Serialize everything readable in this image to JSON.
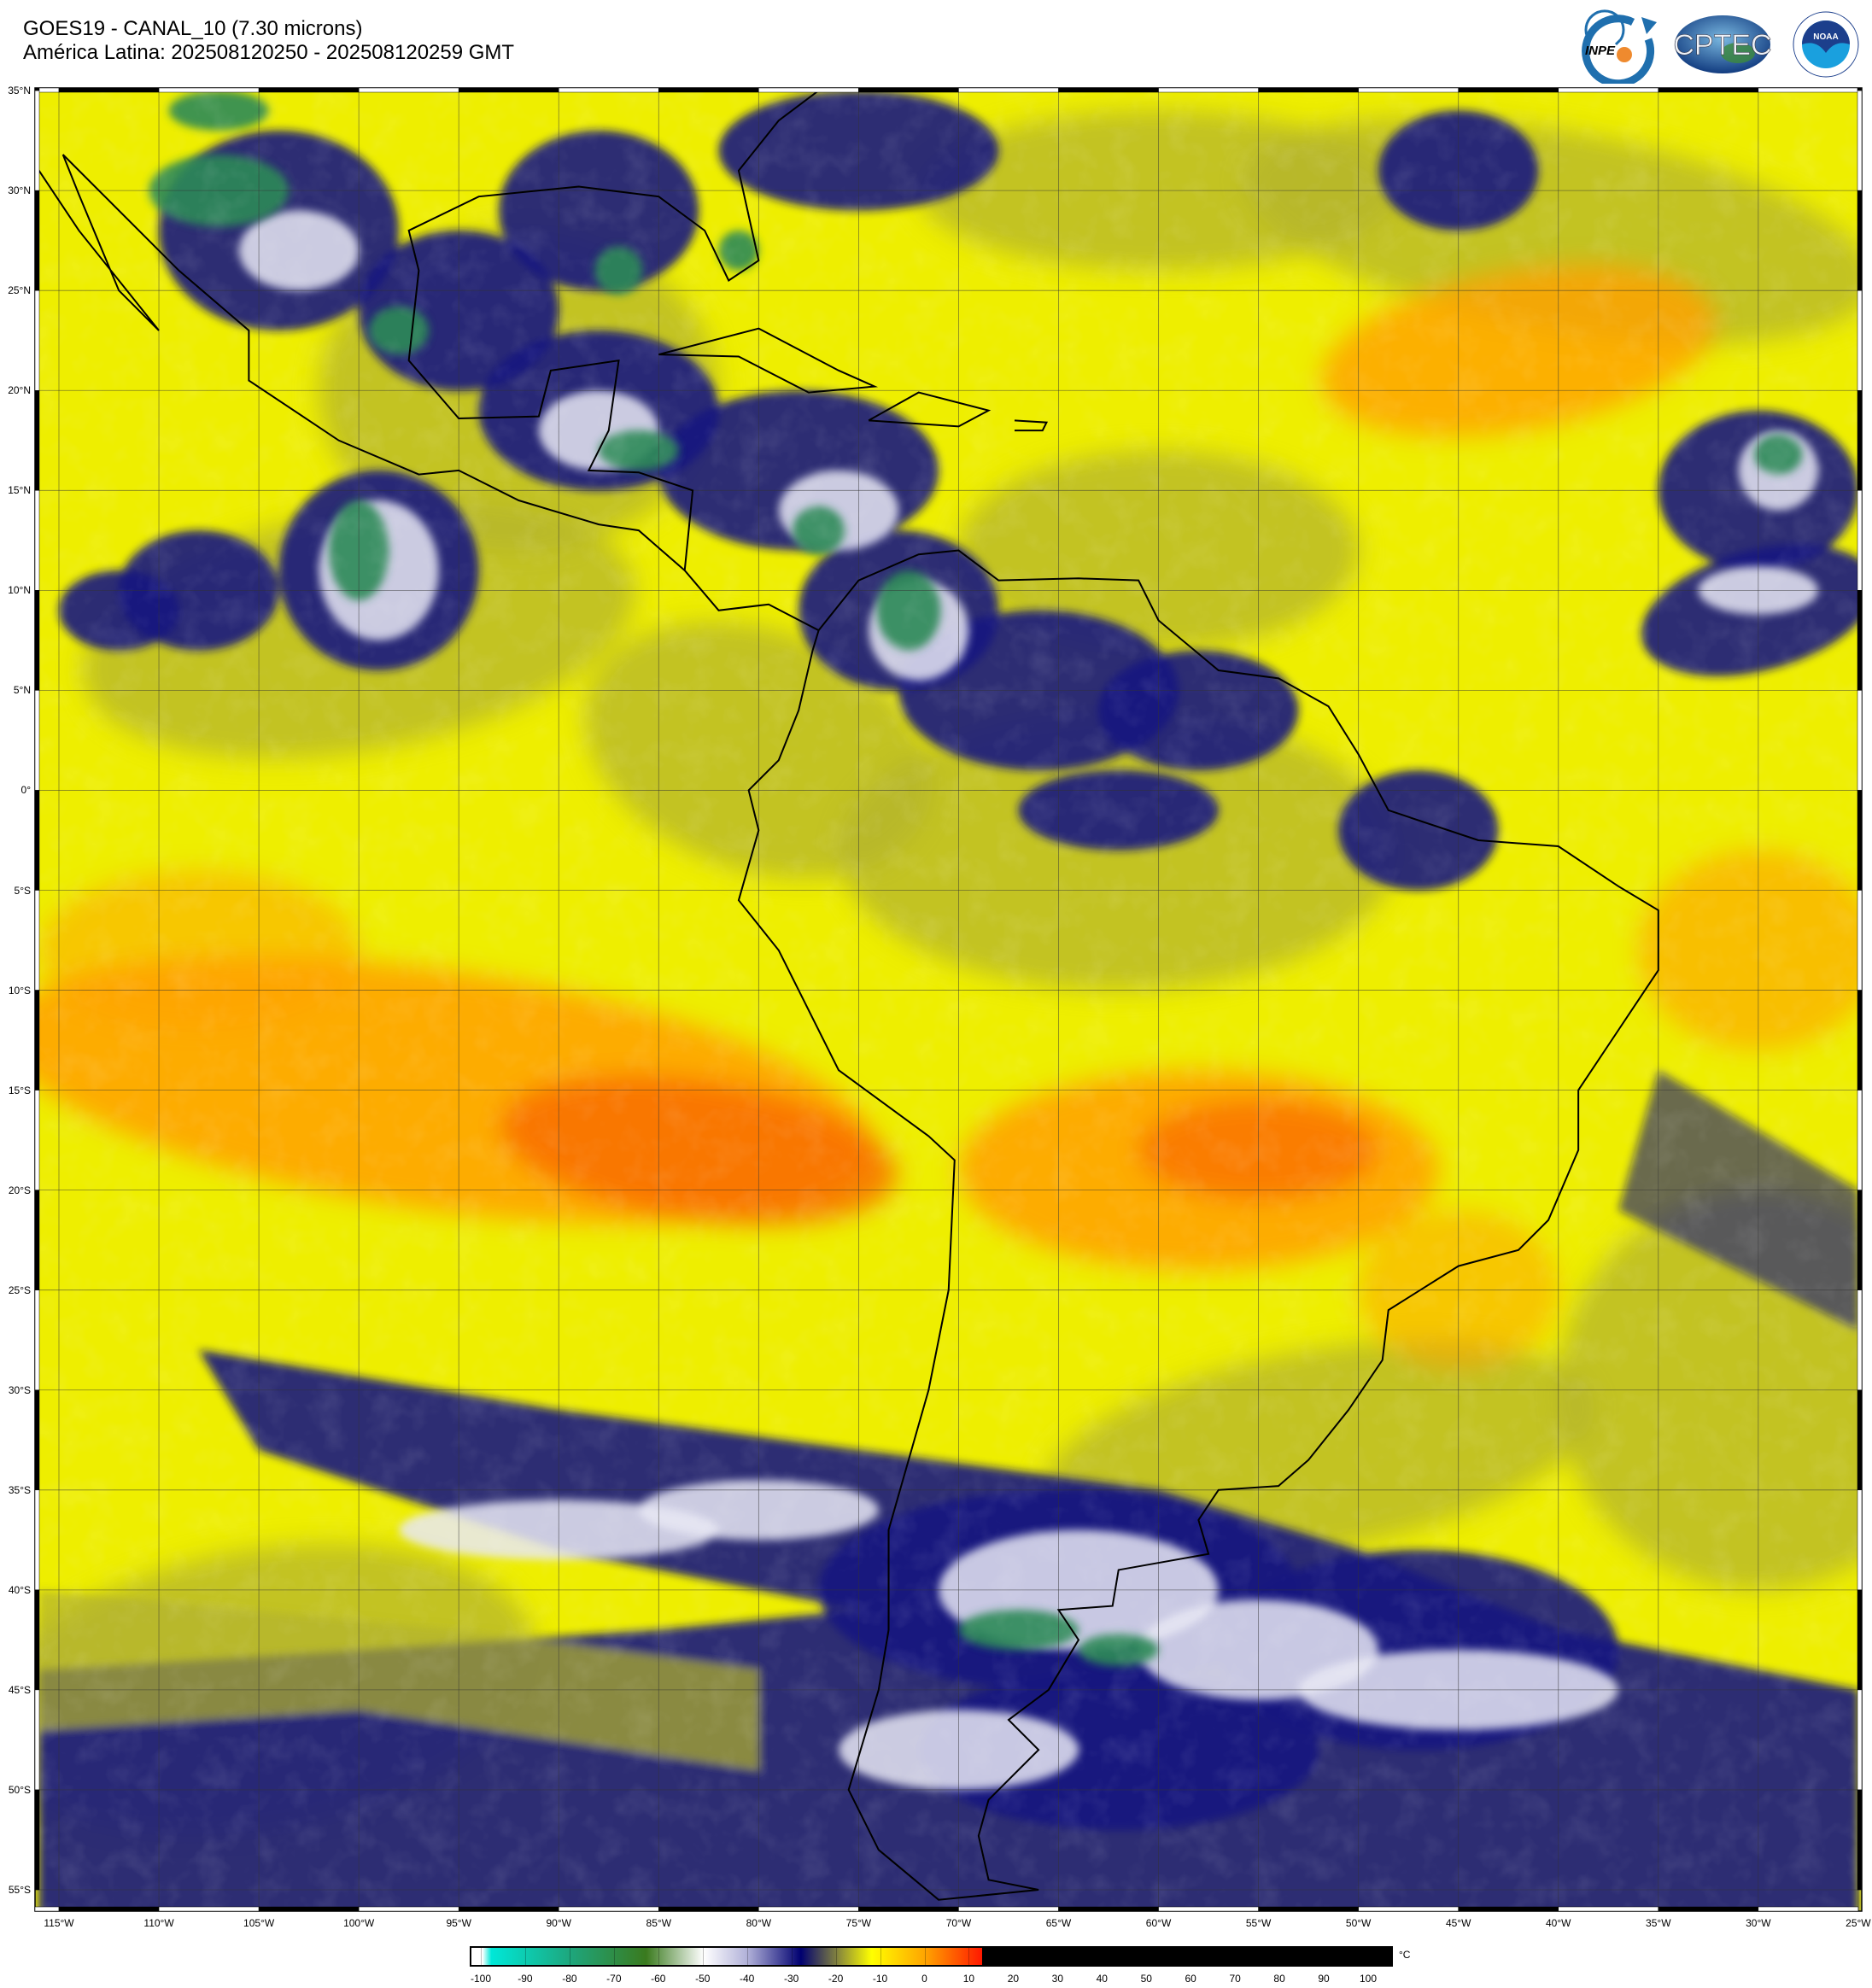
{
  "header": {
    "title": "GOES19 - CANAL_10 (7.30 microns)",
    "subtitle": "América Latina: 202508120250 - 202508120259 GMT"
  },
  "logos": {
    "inpe": "INPE",
    "cptec": "CPTEC",
    "noaa": "NOAA",
    "noaa_ring": "NATIONAL OCEANIC AND ATMOSPHERIC ADMINISTRATION · U.S. DEPARTMENT OF COMMERCE"
  },
  "axes": {
    "lat_labels": [
      "35°N",
      "30°N",
      "25°N",
      "20°N",
      "15°N",
      "10°N",
      "5°N",
      "0°",
      "5°S",
      "10°S",
      "15°S",
      "20°S",
      "25°S",
      "30°S",
      "35°S",
      "40°S",
      "45°S",
      "50°S",
      "55°S"
    ],
    "lon_labels": [
      "115°W",
      "110°W",
      "105°W",
      "100°W",
      "95°W",
      "90°W",
      "85°W",
      "80°W",
      "75°W",
      "70°W",
      "65°W",
      "60°W",
      "55°W",
      "50°W",
      "45°W",
      "40°W",
      "35°W",
      "30°W",
      "25°W"
    ],
    "lat_range": [
      -55,
      35
    ],
    "lon_range": [
      -115,
      -25
    ],
    "grid_step_deg": 5
  },
  "colorbar": {
    "unit": "°C",
    "ticks": [
      "-100",
      "-90",
      "-80",
      "-70",
      "-60",
      "-50",
      "-40",
      "-30",
      "-20",
      "-10",
      "0",
      "10",
      "20",
      "30",
      "40",
      "50",
      "60",
      "70",
      "80",
      "90",
      "100"
    ],
    "range": [
      -100,
      100
    ],
    "stops": [
      {
        "t": -100,
        "color": "#ffffff"
      },
      {
        "t": -98,
        "color": "#00e8d8"
      },
      {
        "t": -80,
        "color": "#1ea67c"
      },
      {
        "t": -63,
        "color": "#3a7a1e"
      },
      {
        "t": -50,
        "color": "#ffffff"
      },
      {
        "t": -40,
        "color": "#b0b0d8"
      },
      {
        "t": -28,
        "color": "#000070"
      },
      {
        "t": -20,
        "color": "#808040"
      },
      {
        "t": -12,
        "color": "#ffff00"
      },
      {
        "t": 0,
        "color": "#ffa500"
      },
      {
        "t": 13,
        "color": "#ff1800"
      },
      {
        "t": 13.01,
        "color": "#000000"
      },
      {
        "t": 105,
        "color": "#000000"
      }
    ]
  },
  "colors": {
    "yellow": "#eeee00",
    "olive": "#b4b42c",
    "orange": "#ffa000",
    "deep_orange": "#f86a00",
    "navy": "#141480",
    "cloud_white": "#e8e8f4",
    "cold_green": "#2e8a58"
  }
}
